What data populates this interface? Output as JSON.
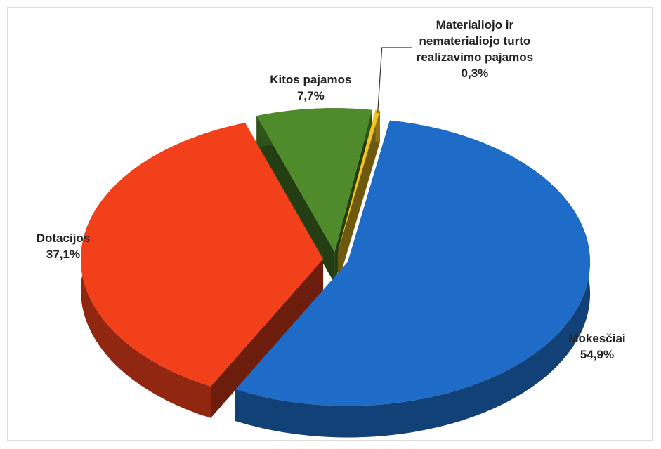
{
  "chart_data": {
    "type": "pie",
    "categories": [
      "Mokesčiai",
      "Dotacijos",
      "Kitos pajamos",
      "Materialiojo ir nematerialiojo turto realizavimo pajamos"
    ],
    "values": [
      54.9,
      37.1,
      7.7,
      0.3
    ],
    "value_labels": [
      "54,9%",
      "37,1%",
      "7,7%",
      "0,3%"
    ],
    "colors": [
      "#1e6cc8",
      "#f2411a",
      "#4f8a2b",
      "#f3c31f"
    ]
  }
}
